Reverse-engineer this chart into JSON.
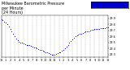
{
  "title": "Milwaukee Barometric Pressure\nper Minute\n(24 Hours)",
  "title_fontsize": 3.5,
  "bg_color": "#ffffff",
  "dot_color": "#0000ff",
  "dot_size": 0.5,
  "legend_color": "#0000cc",
  "x_label_fontsize": 2.5,
  "y_label_fontsize": 2.5,
  "ylim": [
    29.25,
    29.95
  ],
  "xlim": [
    0,
    1440
  ],
  "y_ticks": [
    29.3,
    29.4,
    29.5,
    29.6,
    29.7,
    29.8,
    29.9
  ],
  "x_tick_positions": [
    0,
    60,
    120,
    180,
    240,
    300,
    360,
    420,
    480,
    540,
    600,
    660,
    720,
    780,
    840,
    900,
    960,
    1020,
    1080,
    1140,
    1200,
    1260,
    1320,
    1380,
    1440
  ],
  "x_tick_labels": [
    "12",
    "1",
    "2",
    "3",
    "4",
    "5",
    "6",
    "7",
    "8",
    "9",
    "10",
    "11",
    "12",
    "1",
    "2",
    "3",
    "4",
    "5",
    "6",
    "7",
    "8",
    "9",
    "10",
    "11",
    "12"
  ],
  "pressure_data": [
    [
      0,
      29.88
    ],
    [
      20,
      29.87
    ],
    [
      40,
      29.85
    ],
    [
      60,
      29.83
    ],
    [
      80,
      29.8
    ],
    [
      100,
      29.77
    ],
    [
      120,
      29.73
    ],
    [
      140,
      29.69
    ],
    [
      160,
      29.64
    ],
    [
      180,
      29.6
    ],
    [
      200,
      29.56
    ],
    [
      220,
      29.53
    ],
    [
      240,
      29.51
    ],
    [
      260,
      29.5
    ],
    [
      280,
      29.49
    ],
    [
      300,
      29.48
    ],
    [
      320,
      29.47
    ],
    [
      340,
      29.46
    ],
    [
      360,
      29.46
    ],
    [
      380,
      29.45
    ],
    [
      400,
      29.44
    ],
    [
      420,
      29.43
    ],
    [
      440,
      29.42
    ],
    [
      460,
      29.41
    ],
    [
      480,
      29.4
    ],
    [
      500,
      29.39
    ],
    [
      520,
      29.38
    ],
    [
      540,
      29.37
    ],
    [
      560,
      29.36
    ],
    [
      580,
      29.35
    ],
    [
      600,
      29.34
    ],
    [
      620,
      29.33
    ],
    [
      640,
      29.32
    ],
    [
      660,
      29.31
    ],
    [
      680,
      29.3
    ],
    [
      700,
      29.3
    ],
    [
      720,
      29.3
    ],
    [
      740,
      29.31
    ],
    [
      760,
      29.32
    ],
    [
      780,
      29.33
    ],
    [
      800,
      29.34
    ],
    [
      820,
      29.36
    ],
    [
      840,
      29.38
    ],
    [
      860,
      29.4
    ],
    [
      880,
      29.43
    ],
    [
      900,
      29.46
    ],
    [
      920,
      29.49
    ],
    [
      940,
      29.52
    ],
    [
      960,
      29.55
    ],
    [
      980,
      29.58
    ],
    [
      1000,
      29.6
    ],
    [
      1020,
      29.62
    ],
    [
      1040,
      29.63
    ],
    [
      1060,
      29.64
    ],
    [
      1080,
      29.65
    ],
    [
      1100,
      29.66
    ],
    [
      1120,
      29.67
    ],
    [
      1140,
      29.68
    ],
    [
      1160,
      29.68
    ],
    [
      1180,
      29.69
    ],
    [
      1200,
      29.7
    ],
    [
      1220,
      29.71
    ],
    [
      1240,
      29.71
    ],
    [
      1260,
      29.72
    ],
    [
      1280,
      29.72
    ],
    [
      1300,
      29.73
    ],
    [
      1320,
      29.73
    ],
    [
      1340,
      29.74
    ],
    [
      1360,
      29.74
    ],
    [
      1380,
      29.74
    ],
    [
      1400,
      29.74
    ],
    [
      1420,
      29.75
    ],
    [
      1440,
      29.75
    ]
  ]
}
